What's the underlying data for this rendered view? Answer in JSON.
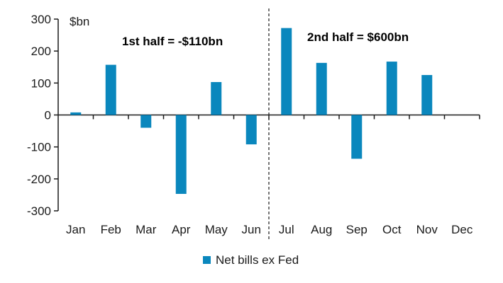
{
  "chart_data": {
    "type": "bar",
    "title": "",
    "xlabel": "",
    "ylabel": "$bn",
    "ylim": [
      -300,
      300
    ],
    "yticks": [
      300,
      200,
      100,
      0,
      -100,
      -200,
      -300
    ],
    "yticks_labels": [
      "300",
      "200",
      "100",
      "0",
      "-100",
      "-200",
      "-300"
    ],
    "categories": [
      "Jan",
      "Feb",
      "Mar",
      "Apr",
      "May",
      "Jun",
      "Jul",
      "Aug",
      "Sep",
      "Oct",
      "Nov",
      "Dec"
    ],
    "series": [
      {
        "name": "Net bills ex Fed",
        "color": "#0a87bd",
        "values": [
          8,
          157,
          -40,
          -247,
          103,
          -92,
          272,
          163,
          -137,
          167,
          125,
          null
        ]
      }
    ],
    "grid": false,
    "legend": "bottom-center",
    "divider_after": "Jun",
    "annotations": [
      {
        "text": "1st half = -$110bn"
      },
      {
        "text": "2nd half = $600bn"
      }
    ]
  }
}
